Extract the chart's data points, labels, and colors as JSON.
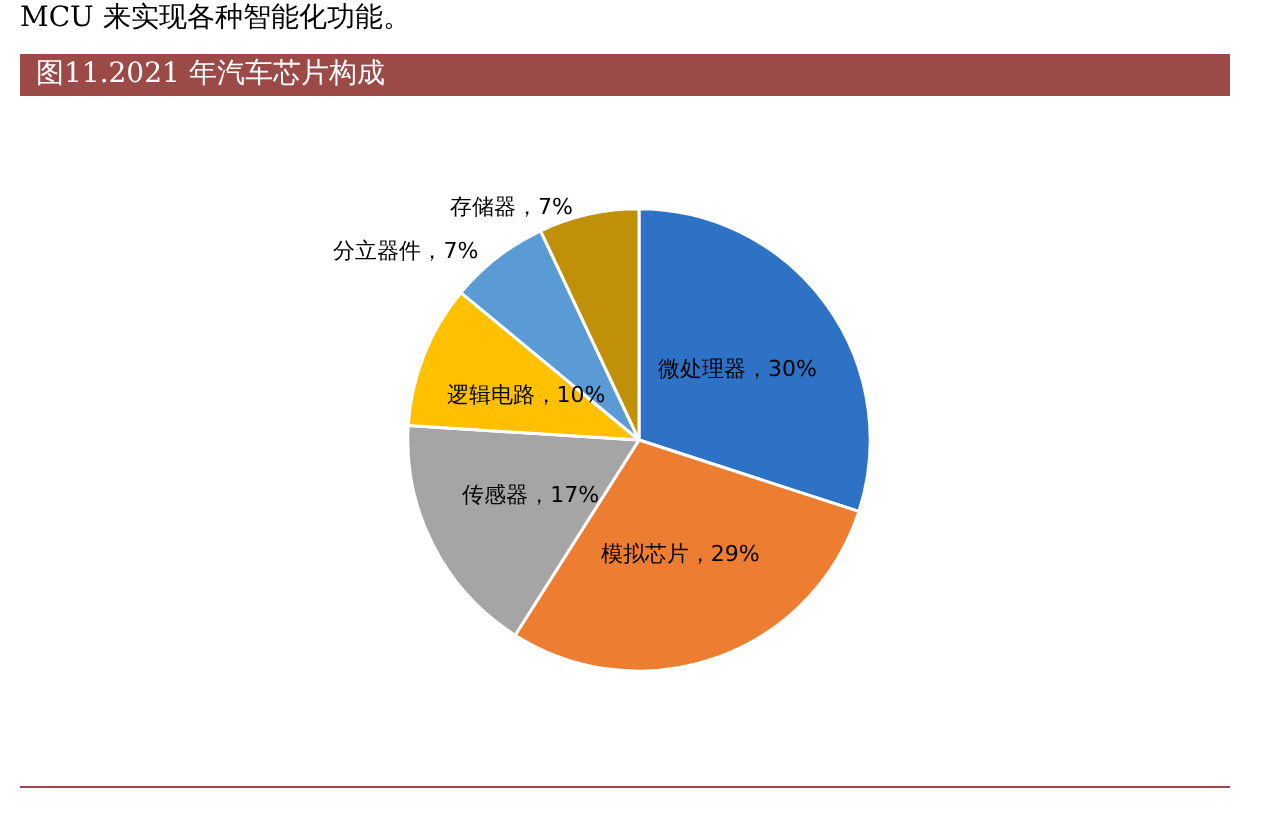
{
  "chart_data": {
    "type": "pie",
    "title": "图11.2021 年汽车芯片构成",
    "annotations": [
      "MCU 来实现各种智能化功能。"
    ],
    "categories": [
      "微处理器",
      "模拟芯片",
      "传感器",
      "逻辑电路",
      "分立器件",
      "存储器"
    ],
    "values": [
      30,
      29,
      17,
      10,
      7,
      7
    ],
    "value_labels": [
      "30%",
      "29%",
      "17%",
      "10%",
      "7%",
      "7%"
    ],
    "colors": [
      "#2e72c6",
      "#ed7d31",
      "#a5a5a5",
      "#ffc000",
      "#5b9bd5",
      "#c09009"
    ],
    "legend": false
  }
}
